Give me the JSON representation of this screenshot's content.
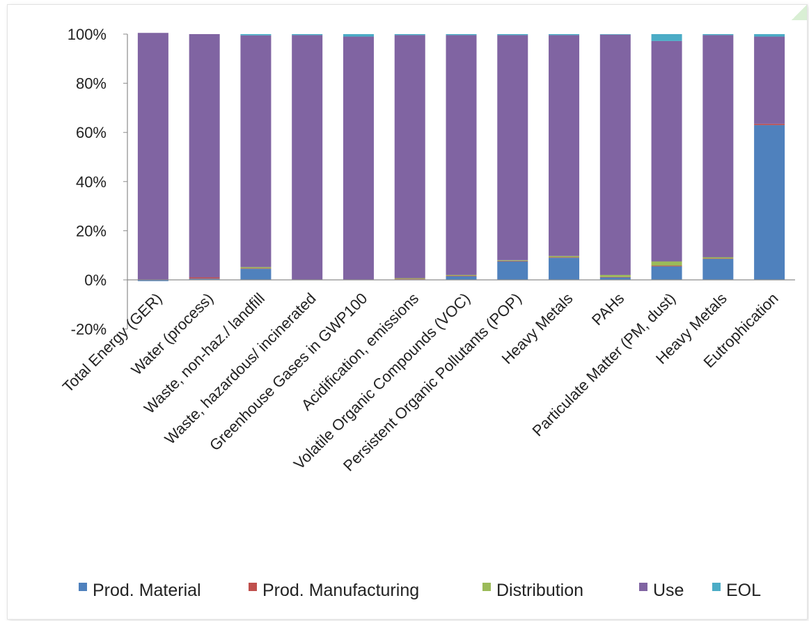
{
  "chart_data": {
    "type": "bar",
    "stacked": true,
    "title": "",
    "xlabel": "",
    "ylabel": "",
    "ylim": [
      -20,
      100
    ],
    "y_ticks": [
      "-20%",
      "0%",
      "20%",
      "40%",
      "60%",
      "80%",
      "100%"
    ],
    "grid": false,
    "legend_position": "bottom",
    "categories": [
      "Total Energy (GER)",
      "Water (process)",
      "Waste, non-haz./ landfill",
      "Waste, hazardous/ incinerated",
      "Greenhouse Gases in GWP100",
      "Acidification, emissions",
      "Volatile Organic Compounds (VOC)",
      "Persistent Organic Pollutants (POP)",
      "Heavy Metals",
      "PAHs",
      "Particulate Matter (PM, dust)",
      "Heavy Metals",
      "Eutrophication"
    ],
    "series": [
      {
        "name": "Prod. Material",
        "color": "#4f81bd",
        "values": [
          -0.5,
          0.5,
          4.5,
          0,
          0,
          0.2,
          1.5,
          7.5,
          9,
          1,
          5.5,
          8.5,
          63
        ]
      },
      {
        "name": "Prod. Manufacturing",
        "color": "#c0504d",
        "values": [
          0,
          0.5,
          0.2,
          0,
          0,
          0.2,
          0.2,
          0.2,
          0.2,
          0.2,
          0.3,
          0.2,
          0.5
        ]
      },
      {
        "name": "Distribution",
        "color": "#9bbb59",
        "values": [
          0,
          0,
          0.5,
          0,
          0,
          0.3,
          0.3,
          0.3,
          0.5,
          0.8,
          1.7,
          0.5,
          0
        ]
      },
      {
        "name": "Use",
        "color": "#8064a2",
        "values": [
          100.5,
          99,
          94.3,
          99.6,
          99,
          98.9,
          97.6,
          91.6,
          89.9,
          97.8,
          89.7,
          90.4,
          35.5
        ]
      },
      {
        "name": "EOL",
        "color": "#4bacc6",
        "values": [
          0,
          0,
          0.5,
          0.4,
          1,
          0.4,
          0.4,
          0.4,
          0.4,
          0.2,
          2.8,
          0.4,
          1
        ]
      }
    ]
  }
}
